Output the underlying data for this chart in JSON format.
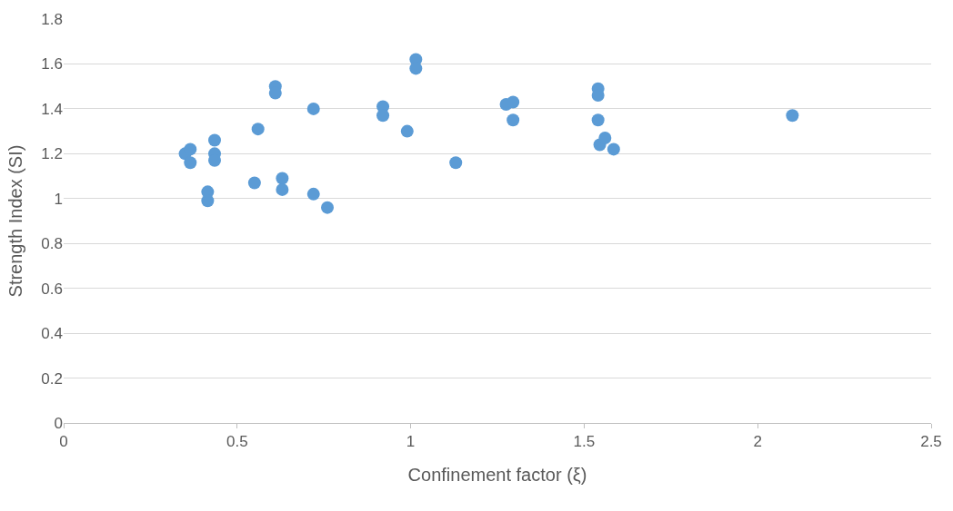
{
  "chart_data": {
    "type": "scatter",
    "xlabel": "Confinement factor (ξ)",
    "ylabel": "Strength Index (SI)",
    "x": [
      0.35,
      0.365,
      0.365,
      0.435,
      0.435,
      0.435,
      0.415,
      0.415,
      0.55,
      0.56,
      0.61,
      0.61,
      0.63,
      0.63,
      0.72,
      0.72,
      0.76,
      0.92,
      0.92,
      0.99,
      1.015,
      1.015,
      1.13,
      1.275,
      1.295,
      1.295,
      1.54,
      1.54,
      1.54,
      1.545,
      1.56,
      1.585,
      2.1
    ],
    "series": [
      {
        "color": "#5b9bd5",
        "values": [
          1.2,
          1.22,
          1.16,
          1.26,
          1.2,
          1.17,
          1.03,
          0.99,
          1.07,
          1.31,
          1.5,
          1.47,
          1.09,
          1.04,
          1.4,
          1.02,
          0.96,
          1.41,
          1.37,
          1.3,
          1.62,
          1.58,
          1.16,
          1.42,
          1.43,
          1.35,
          1.49,
          1.46,
          1.35,
          1.24,
          1.27,
          1.22,
          1.37
        ]
      }
    ],
    "xlim": [
      0,
      2.5
    ],
    "xticks": [
      0,
      0.5,
      1,
      1.5,
      2,
      2.5
    ],
    "ylim": [
      0,
      1.8
    ],
    "yticks": [
      0,
      0.2,
      0.4,
      0.6,
      0.8,
      1,
      1.2,
      1.4,
      1.6,
      1.8
    ],
    "grid": "y",
    "legend": false,
    "marker": "circle"
  }
}
